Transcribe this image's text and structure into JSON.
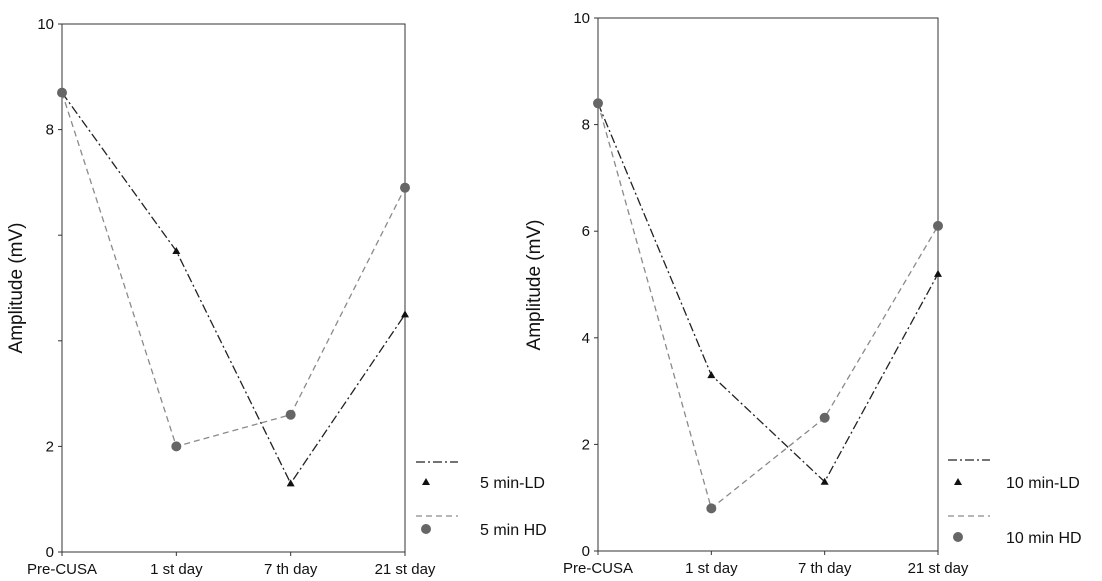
{
  "chart_data": [
    {
      "type": "line",
      "categories": [
        "Pre-CUSA",
        "1 st day",
        "7 th day",
        "21 st day"
      ],
      "ylabel": "Amplitude (mV)",
      "ylim": [
        0,
        10
      ],
      "yticks": [
        "0",
        "2",
        "8",
        "10"
      ],
      "ytick_values": [
        0,
        2,
        8,
        10
      ],
      "grid": false,
      "legend_position": "bottom-right",
      "series": [
        {
          "name": "5 min-LD",
          "values": [
            8.7,
            5.7,
            1.3,
            4.5
          ],
          "line_style": "dash-dot",
          "marker": "triangle",
          "color": "#222222"
        },
        {
          "name": "5 min HD",
          "values": [
            8.7,
            2.0,
            2.6,
            6.9
          ],
          "line_style": "dashed",
          "marker": "circle",
          "color": "#8a8a8a"
        }
      ]
    },
    {
      "type": "line",
      "categories": [
        "Pre-CUSA",
        "1 st day",
        "7 th day",
        "21 st day"
      ],
      "ylabel": "Amplitude (mV)",
      "ylim": [
        0,
        10
      ],
      "yticks": [
        "0",
        "2",
        "4",
        "6",
        "8",
        "10"
      ],
      "ytick_values": [
        0,
        2,
        4,
        6,
        8,
        10
      ],
      "grid": false,
      "legend_position": "bottom-right",
      "series": [
        {
          "name": "10 min-LD",
          "values": [
            8.4,
            3.3,
            1.3,
            5.2
          ],
          "line_style": "dash-dot",
          "marker": "triangle",
          "color": "#222222"
        },
        {
          "name": "10 min HD",
          "values": [
            8.4,
            0.8,
            2.5,
            6.1
          ],
          "line_style": "dashed",
          "marker": "circle",
          "color": "#8a8a8a"
        }
      ]
    }
  ]
}
